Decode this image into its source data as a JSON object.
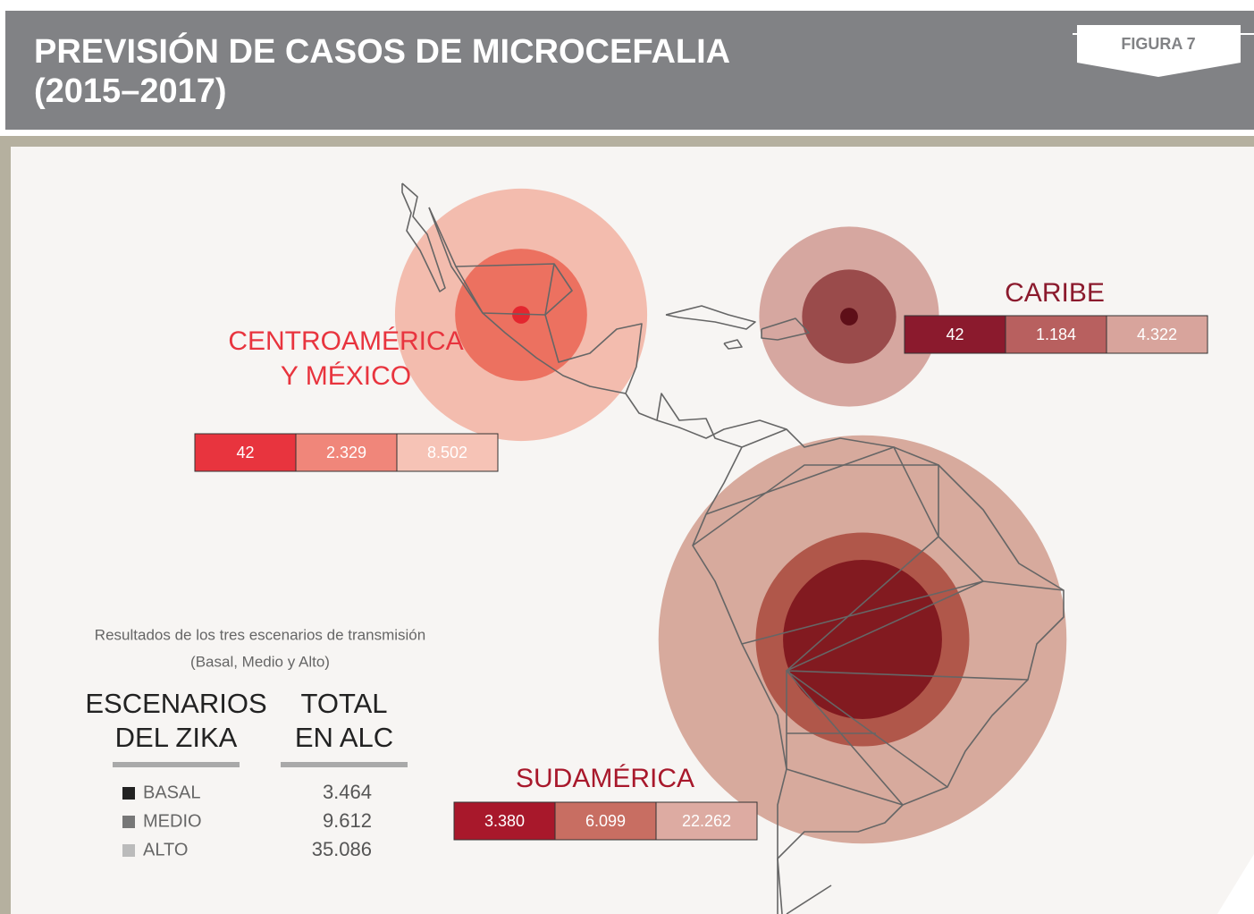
{
  "header": {
    "title": [
      "PREVISIÓN DE CASOS DE MICROCEFALIA",
      "(2015–2017)"
    ],
    "figure": "FIGURA 7"
  },
  "chart_data": {
    "type": "bubble-map",
    "regions": [
      {
        "name": [
          "CENTROAMÉRICA",
          "Y MÉXICO"
        ],
        "color": "#e8343e",
        "values": [
          42,
          2329,
          8502
        ],
        "value_labels": [
          "42",
          "2.329",
          "8.502"
        ],
        "colors": [
          "#e8343e",
          "#f0867a",
          "#f6c3b6"
        ],
        "circle_colors": [
          "#e3262f",
          "#ec7160",
          "#f3bcae"
        ]
      },
      {
        "name": [
          "CARIBE"
        ],
        "color": "#8b1a2d",
        "values": [
          42,
          1184,
          4322
        ],
        "value_labels": [
          "42",
          "1.184",
          "4.322"
        ],
        "colors": [
          "#8b1a2d",
          "#b8605f",
          "#d8a49c"
        ],
        "circle_colors": [
          "#5e0f18",
          "#9a4b4b",
          "#d6a7a0"
        ]
      },
      {
        "name": [
          "SUDAMÉRICA"
        ],
        "color": "#a8182b",
        "values": [
          3380,
          6099,
          22262
        ],
        "value_labels": [
          "3.380",
          "6.099",
          "22.262"
        ],
        "colors": [
          "#a8182b",
          "#c86e62",
          "#ddaba2"
        ],
        "circle_colors": [
          "#821a20",
          "#b0574a",
          "#d7aa9d"
        ]
      }
    ],
    "legend": {
      "subtitle": [
        "Resultados de los tres escenarios de transmisión",
        "(Basal, Medio y Alto)"
      ],
      "headings": [
        [
          "ESCENARIOS",
          "DEL ZIKA"
        ],
        [
          "TOTAL",
          "EN ALC"
        ]
      ],
      "scenarios": [
        {
          "name": "BASAL",
          "color": "#222222",
          "total": 3464,
          "total_label": "3.464"
        },
        {
          "name": "MEDIO",
          "color": "#777777",
          "total": 9612,
          "total_label": "9.612"
        },
        {
          "name": "ALTO",
          "color": "#bbbbbb",
          "total": 35086,
          "total_label": "35.086"
        }
      ]
    }
  }
}
